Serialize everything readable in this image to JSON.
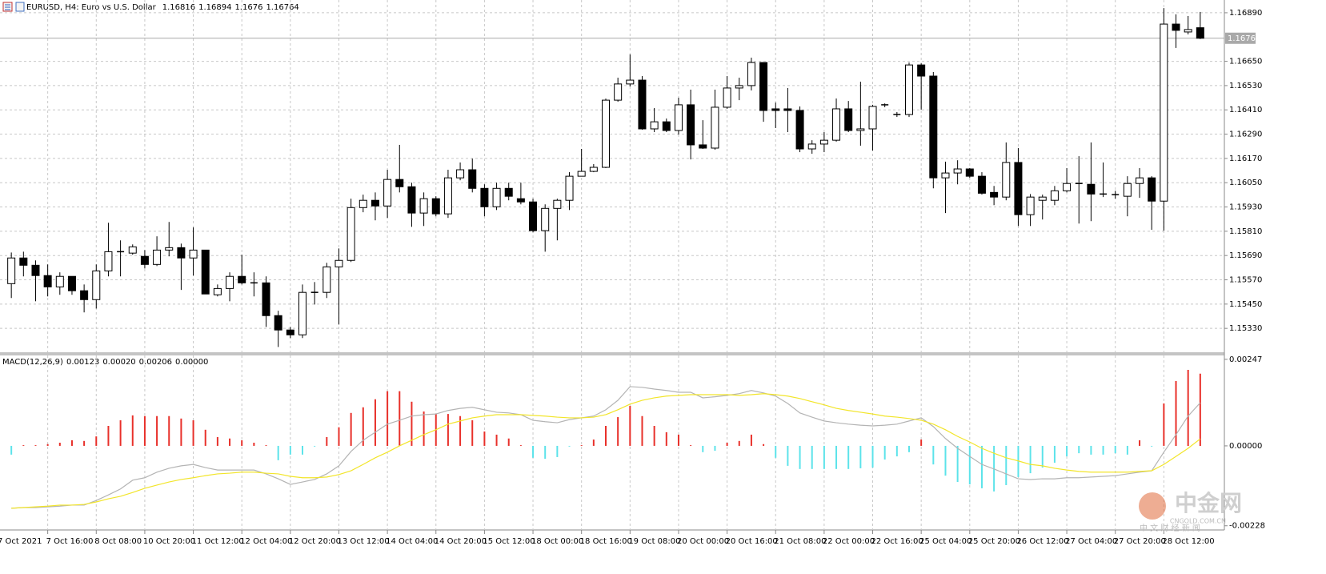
{
  "chart_data": [
    {
      "type": "candlestick",
      "title": "EURUSD, H4:  Euro vs U.S. Dollar",
      "categories": [
        "7 Oct 2021",
        null,
        null,
        null,
        "7 Oct 16:00",
        null,
        null,
        null,
        "8 Oct 08:00",
        null,
        null,
        null,
        "10 Oct 20:00",
        null,
        null,
        null,
        "11 Oct 12:00",
        null,
        null,
        null,
        "12 Oct 04:00",
        null,
        null,
        null,
        "12 Oct 20:00",
        null,
        null,
        null,
        "13 Oct 12:00",
        null,
        null,
        null,
        "14 Oct 04:00",
        null,
        null,
        null,
        "14 Oct 20:00",
        null,
        null,
        null,
        "15 Oct 12:00",
        null,
        null,
        null,
        "18 Oct 00:00",
        null,
        null,
        null,
        "18 Oct 16:00",
        null,
        null,
        null,
        "19 Oct 08:00",
        null,
        null,
        null,
        "20 Oct 00:00",
        null,
        null,
        null,
        "20 Oct 16:00",
        null,
        null,
        null,
        "21 Oct 08:00",
        null,
        null,
        null,
        "22 Oct 00:00",
        null,
        null,
        null,
        "22 Oct 16:00",
        null,
        null,
        null,
        "25 Oct 04:00",
        null,
        null,
        null,
        "25 Oct 20:00",
        null,
        null,
        null,
        "26 Oct 12:00",
        null,
        null,
        null,
        "27 Oct 04:00",
        null,
        null,
        null,
        "27 Oct 20:00",
        null,
        null,
        null,
        "28 Oct 12:00",
        null,
        null,
        null
      ],
      "open": [
        null,
        1.15551,
        1.15678,
        1.15642,
        1.15591,
        1.15535,
        1.15587,
        1.15516,
        1.15472,
        1.15614,
        1.15709,
        1.15702,
        1.15686,
        1.15646,
        1.15717,
        1.15729,
        1.15678,
        1.15717,
        1.15496,
        1.15527,
        1.15587,
        1.15555,
        1.15555,
        1.15393,
        1.15322,
        1.15298,
        1.15508,
        1.15508,
        1.15634,
        1.15666,
        1.15927,
        1.15963,
        1.15935,
        1.16066,
        1.1603,
        1.159,
        1.15971,
        1.15896,
        1.16074,
        1.16114,
        1.16022,
        1.15931,
        1.16022,
        1.15971,
        1.15955,
        1.15813,
        1.15923,
        1.15963,
        1.16082,
        1.16106,
        1.16126,
        1.16458,
        1.16538,
        1.16557,
        1.16316,
        1.16351,
        1.16308,
        1.16435,
        1.16237,
        1.16221,
        1.16423,
        1.16518,
        1.1653,
        1.16644,
        1.16415,
        1.16415,
        1.16407,
        1.16217,
        1.16241,
        1.1626,
        1.16415,
        1.16308,
        1.16316,
        1.16435,
        1.16387,
        1.16387,
        1.16632,
        1.16577,
        1.16074,
        1.16098,
        1.16118,
        1.16082,
        1.16002,
        1.15979,
        1.1615,
        1.15892,
        1.15963,
        1.15963,
        1.1601,
        1.16046,
        1.16042,
        1.15994,
        1.15991,
        1.15983,
        1.16046,
        1.16074,
        1.15959,
        1.16834,
        1.16795,
        1.16816
      ],
      "high": [
        null,
        1.15705,
        1.15709,
        1.15666,
        1.15646,
        1.15607,
        1.15587,
        1.15547,
        1.15646,
        1.15852,
        1.15765,
        1.15745,
        1.15717,
        1.15785,
        1.15856,
        1.15749,
        1.15829,
        1.15717,
        1.15547,
        1.15607,
        1.15694,
        1.15607,
        1.15587,
        1.15417,
        1.15337,
        1.15547,
        1.15559,
        1.15654,
        1.15725,
        1.15971,
        1.15991,
        1.16002,
        1.16114,
        1.16237,
        1.1605,
        1.16002,
        1.15983,
        1.16114,
        1.1615,
        1.16169,
        1.16042,
        1.1605,
        1.1605,
        1.1605,
        1.15971,
        1.15943,
        1.15971,
        1.16102,
        1.16217,
        1.16142,
        1.16466,
        1.16569,
        1.16684,
        1.16577,
        1.16419,
        1.16367,
        1.1647,
        1.1651,
        1.16359,
        1.1651,
        1.16577,
        1.16569,
        1.16668,
        1.16644,
        1.16446,
        1.16518,
        1.16427,
        1.1626,
        1.163,
        1.16466,
        1.16454,
        1.16549,
        1.16435,
        1.16442,
        1.16399,
        1.16644,
        1.1664,
        1.16597,
        1.16154,
        1.16161,
        1.16122,
        1.16102,
        1.16034,
        1.16249,
        1.16221,
        1.15994,
        1.15991,
        1.16034,
        1.16122,
        1.16181,
        1.16249,
        1.1615,
        1.1601,
        1.16082,
        1.16122,
        1.16082,
        1.16913,
        1.16882,
        1.16874,
        1.16894
      ],
      "low": [
        null,
        1.1548,
        1.15587,
        1.15464,
        1.15488,
        1.15496,
        1.15496,
        1.15409,
        1.15428,
        1.15587,
        1.15587,
        1.15694,
        1.15626,
        1.15638,
        1.15686,
        1.1552,
        1.15591,
        1.155,
        1.15488,
        1.15464,
        1.15547,
        1.15488,
        1.15337,
        1.15238,
        1.15282,
        1.15282,
        1.15448,
        1.1548,
        1.15349,
        1.15658,
        1.15904,
        1.15864,
        1.15876,
        1.16002,
        1.15832,
        1.15836,
        1.15884,
        1.15876,
        1.16062,
        1.16002,
        1.15884,
        1.15915,
        1.15963,
        1.15943,
        1.15805,
        1.15709,
        1.15765,
        1.15915,
        1.16082,
        1.16102,
        1.16122,
        1.1645,
        1.16526,
        1.16312,
        1.163,
        1.163,
        1.16288,
        1.16165,
        1.16217,
        1.16213,
        1.16415,
        1.16458,
        1.16506,
        1.16351,
        1.1632,
        1.163,
        1.16201,
        1.16193,
        1.16201,
        1.16253,
        1.163,
        1.16233,
        1.16209,
        1.16423,
        1.16375,
        1.16375,
        1.16411,
        1.16022,
        1.159,
        1.16042,
        1.16074,
        1.15991,
        1.15939,
        1.15963,
        1.15836,
        1.15836,
        1.15868,
        1.15939,
        1.16002,
        1.15848,
        1.1586,
        1.15979,
        1.15971,
        1.15884,
        1.15975,
        1.15817,
        1.15813,
        1.16716,
        1.16783,
        1.1676
      ],
      "close": [
        null,
        1.15678,
        1.15642,
        1.15591,
        1.15535,
        1.15587,
        1.15516,
        1.15472,
        1.15614,
        1.15709,
        1.15709,
        1.15733,
        1.15646,
        1.15717,
        1.15729,
        1.15678,
        1.15717,
        1.155,
        1.15527,
        1.15587,
        1.15555,
        1.15555,
        1.15393,
        1.15322,
        1.15298,
        1.15508,
        1.15508,
        1.15634,
        1.15666,
        1.15927,
        1.15963,
        1.15935,
        1.16066,
        1.1603,
        1.159,
        1.15971,
        1.15896,
        1.16074,
        1.16114,
        1.16022,
        1.15931,
        1.16022,
        1.15983,
        1.15955,
        1.15813,
        1.15923,
        1.15963,
        1.16082,
        1.16106,
        1.16126,
        1.16458,
        1.16538,
        1.16557,
        1.16316,
        1.16351,
        1.16308,
        1.16435,
        1.16237,
        1.16221,
        1.16423,
        1.16518,
        1.1653,
        1.16644,
        1.16407,
        1.16407,
        1.16407,
        1.16217,
        1.16241,
        1.1626,
        1.16415,
        1.16308,
        1.16316,
        1.16427,
        1.16435,
        1.16387,
        1.16632,
        1.16577,
        1.16074,
        1.16098,
        1.16118,
        1.16082,
        1.15998,
        1.15979,
        1.1615,
        1.15892,
        1.15979,
        1.15979,
        1.1601,
        1.16046,
        1.16046,
        1.15994,
        1.15994,
        1.15991,
        1.16046,
        1.16074,
        1.15959,
        1.16834,
        1.16803,
        1.16807,
        1.16764
      ],
      "up_color": "#ffffff",
      "down_color": "#000000",
      "outline_color": "#000000",
      "ylim": [
        1.15212,
        1.16953
      ],
      "yticks": [
        {
          "value": 1.1689,
          "label": "1.16890"
        },
        {
          "value": 1.1665,
          "label": "1.16650"
        },
        {
          "value": 1.1653,
          "label": "1.16530"
        },
        {
          "value": 1.1641,
          "label": "1.16410"
        },
        {
          "value": 1.1629,
          "label": "1.16290"
        },
        {
          "value": 1.1617,
          "label": "1.16170"
        },
        {
          "value": 1.1605,
          "label": "1.16050"
        },
        {
          "value": 1.1593,
          "label": "1.15930"
        },
        {
          "value": 1.1581,
          "label": "1.15810"
        },
        {
          "value": 1.1569,
          "label": "1.15690"
        },
        {
          "value": 1.1557,
          "label": "1.15570"
        },
        {
          "value": 1.1545,
          "label": "1.15450"
        },
        {
          "value": 1.1533,
          "label": "1.15330"
        }
      ],
      "grid": true
    },
    {
      "type": "macd",
      "title": "MACD(12,26,9)",
      "readout": [
        "0.00123",
        "0.00020",
        "0.00206",
        "0.00000"
      ],
      "histogram": [
        null,
        -0.00025,
        2e-05,
        2e-05,
        5e-05,
        9e-05,
        0.00016,
        0.00014,
        0.00027,
        0.00057,
        0.00073,
        0.00087,
        0.00085,
        0.00085,
        0.00085,
        0.00078,
        0.00073,
        0.00046,
        0.00025,
        0.00021,
        0.00016,
        9e-05,
        2e-05,
        -0.00041,
        -0.00025,
        -0.00025,
        -2e-05,
        0.00025,
        0.00053,
        0.00094,
        0.0011,
        0.00133,
        0.00156,
        0.00156,
        0.00126,
        0.00098,
        0.00091,
        0.00091,
        0.00085,
        0.00073,
        0.00041,
        0.00032,
        0.00021,
        2e-05,
        -0.00034,
        -0.00037,
        -0.00032,
        -2e-05,
        2e-05,
        0.00018,
        0.00057,
        0.00082,
        0.00114,
        0.00085,
        0.00057,
        0.00039,
        0.00032,
        2e-05,
        -0.00018,
        -0.00014,
        9e-05,
        0.00014,
        0.00032,
        5e-05,
        -0.00034,
        -0.00057,
        -0.00066,
        -0.00066,
        -0.00066,
        -0.00066,
        -0.00066,
        -0.00064,
        -0.00062,
        -0.00039,
        -0.0003,
        -0.00018,
        0.00018,
        -0.00053,
        -0.00085,
        -0.00103,
        -0.0011,
        -0.00121,
        -0.0013,
        -0.00112,
        -0.00089,
        -0.00078,
        -0.00062,
        -0.00048,
        -0.0003,
        -0.00021,
        -0.00025,
        -0.00025,
        -0.00021,
        -0.00025,
        0.00016,
        -2e-05,
        0.00121,
        0.00185,
        0.00217,
        0.00206
      ],
      "pos_color": "#e8302a",
      "neg_color": "#5ce3ea",
      "series": [
        {
          "name": "MACD",
          "color": "#b4b4b4",
          "values": [
            null,
            -0.00178,
            -0.00176,
            -0.00176,
            -0.00174,
            -0.00172,
            -0.00169,
            -0.00169,
            -0.00156,
            -0.0014,
            -0.00123,
            -0.00098,
            -0.00091,
            -0.00075,
            -0.00064,
            -0.00057,
            -0.00053,
            -0.00062,
            -0.00069,
            -0.00069,
            -0.00069,
            -0.00069,
            -0.0008,
            -0.00094,
            -0.0011,
            -0.00103,
            -0.00096,
            -0.0008,
            -0.00057,
            -0.00016,
            0.00016,
            0.00039,
            0.00062,
            0.00073,
            0.00085,
            0.00089,
            0.00091,
            0.00101,
            0.00107,
            0.0011,
            0.00103,
            0.00096,
            0.00094,
            0.00089,
            0.00073,
            0.00069,
            0.00066,
            0.00075,
            0.0008,
            0.00085,
            0.00103,
            0.0013,
            0.00169,
            0.00167,
            0.00162,
            0.00158,
            0.00153,
            0.00153,
            0.00137,
            0.0014,
            0.00144,
            0.00149,
            0.00158,
            0.00151,
            0.00142,
            0.00121,
            0.00094,
            0.00082,
            0.00071,
            0.00066,
            0.00062,
            0.00059,
            0.00057,
            0.00059,
            0.00062,
            0.00071,
            0.0008,
            0.00055,
            0.00021,
            -7e-05,
            -0.0003,
            -0.00053,
            -0.00066,
            -0.0008,
            -0.00094,
            -0.00096,
            -0.00094,
            -0.00094,
            -0.00091,
            -0.00091,
            -0.00089,
            -0.00087,
            -0.00085,
            -0.0008,
            -0.00075,
            -0.00071,
            -0.00018,
            0.00032,
            0.00085,
            0.00123
          ]
        },
        {
          "name": "Signal",
          "color": "#f2e52a",
          "values": [
            null,
            -0.00178,
            -0.00176,
            -0.00174,
            -0.00172,
            -0.00169,
            -0.00169,
            -0.00167,
            -0.0016,
            -0.00151,
            -0.00144,
            -0.00133,
            -0.00121,
            -0.00112,
            -0.00103,
            -0.00096,
            -0.00091,
            -0.00085,
            -0.0008,
            -0.00078,
            -0.00075,
            -0.00075,
            -0.00078,
            -0.0008,
            -0.00087,
            -0.00091,
            -0.00091,
            -0.00089,
            -0.00082,
            -0.00071,
            -0.00053,
            -0.00034,
            -0.00018,
            0.0,
            0.00016,
            0.00032,
            0.00046,
            0.00062,
            0.00071,
            0.0008,
            0.00085,
            0.00089,
            0.00089,
            0.00089,
            0.00087,
            0.00085,
            0.00082,
            0.0008,
            0.0008,
            0.00082,
            0.00089,
            0.00103,
            0.00119,
            0.0013,
            0.00137,
            0.00142,
            0.00144,
            0.00146,
            0.00146,
            0.00146,
            0.00146,
            0.00144,
            0.00146,
            0.00149,
            0.00146,
            0.00142,
            0.00135,
            0.00126,
            0.00117,
            0.00107,
            0.00101,
            0.00096,
            0.00091,
            0.00085,
            0.00082,
            0.00078,
            0.00073,
            0.00062,
            0.00046,
            0.00027,
            0.00011,
            -7e-05,
            -0.00021,
            -0.00034,
            -0.00043,
            -0.00053,
            -0.00057,
            -0.00064,
            -0.00069,
            -0.00073,
            -0.00075,
            -0.00075,
            -0.00075,
            -0.00075,
            -0.00073,
            -0.00071,
            -0.00053,
            -0.0003,
            -7e-05,
            0.0002
          ]
        }
      ],
      "ylim": [
        -0.0024,
        0.00258
      ],
      "yticks": [
        {
          "value": 0.00247,
          "label": "0.00247"
        },
        {
          "value": 0,
          "label": "0.00000"
        },
        {
          "value": -0.00228,
          "label": "-0.00228"
        }
      ]
    }
  ],
  "watermark": {
    "brand": "中金网",
    "site": "CNGOLD.COM.CN",
    "slogan": "中 文 财 经 新 闻"
  }
}
